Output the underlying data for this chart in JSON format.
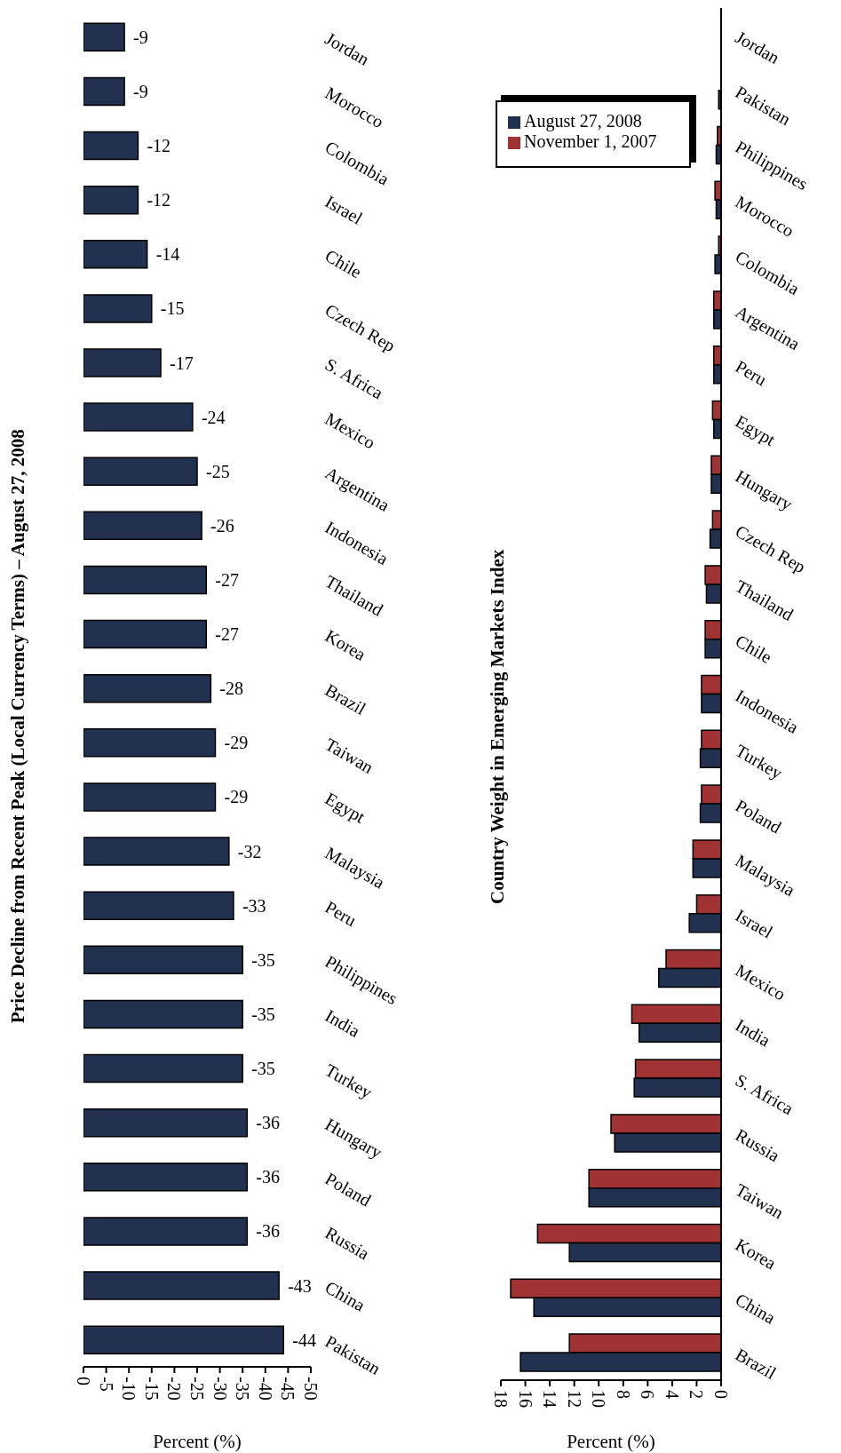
{
  "chart_data": [
    {
      "type": "bar",
      "orientation": "horizontal",
      "title": "Price Decline from Recent Peak (Local Currency Terms) – August 27, 2008",
      "xlabel": "Percent (%)",
      "categories": [
        "Jordan",
        "Morocco",
        "Colombia",
        "Israel",
        "Chile",
        "Czech Rep",
        "S. Africa",
        "Mexico",
        "Argentina",
        "Indonesia",
        "Thailand",
        "Korea",
        "Brazil",
        "Taiwan",
        "Egypt",
        "Malaysia",
        "Peru",
        "Philippines",
        "India",
        "Turkey",
        "Hungary",
        "Poland",
        "Russia",
        "China",
        "Pakistan"
      ],
      "series": [
        {
          "color": "#22314f",
          "values": [
            -9,
            -9,
            -12,
            -12,
            -14,
            -15,
            -17,
            -24,
            -25,
            -26,
            -27,
            -27,
            -28,
            -29,
            -29,
            -32,
            -33,
            -35,
            -35,
            -35,
            -36,
            -36,
            -36,
            -43,
            -44
          ]
        }
      ],
      "xlim": [
        0,
        -50
      ],
      "xticks": [
        0,
        -5,
        -10,
        -15,
        -20,
        -25,
        -30,
        -35,
        -40,
        -45,
        -50
      ],
      "data_labels": true,
      "grid": false,
      "legend": false
    },
    {
      "type": "bar",
      "orientation": "horizontal",
      "title": "Country Weight in Emerging Markets Index",
      "xlabel": "Percent (%)",
      "categories": [
        "Jordan",
        "Pakistan",
        "Philippines",
        "Morocco",
        "Colombia",
        "Argentina",
        "Peru",
        "Egypt",
        "Hungary",
        "Czech Rep",
        "Thailand",
        "Chile",
        "Indonesia",
        "Turkey",
        "Poland",
        "Malaysia",
        "Israel",
        "Mexico",
        "India",
        "S. Africa",
        "Russia",
        "Taiwan",
        "Korea",
        "China",
        "Brazil"
      ],
      "series": [
        {
          "name": "August 27, 2008",
          "color": "#22314f",
          "values": [
            null,
            0.2,
            0.4,
            0.4,
            0.5,
            0.6,
            0.6,
            0.6,
            0.8,
            0.9,
            1.2,
            1.3,
            1.6,
            1.7,
            1.7,
            2.3,
            2.6,
            5.1,
            6.7,
            7.1,
            8.7,
            10.8,
            12.4,
            15.3,
            16.4
          ]
        },
        {
          "name": "November 1, 2007",
          "color": "#a03234",
          "values": [
            null,
            null,
            0.3,
            0.5,
            0.2,
            0.6,
            0.6,
            0.7,
            0.8,
            0.7,
            1.3,
            1.3,
            1.6,
            1.6,
            1.6,
            2.3,
            2.0,
            4.5,
            7.3,
            7.0,
            9.0,
            10.8,
            15.0,
            17.2,
            12.4
          ]
        }
      ],
      "xlim": [
        18,
        0
      ],
      "xticks": [
        18,
        16,
        14,
        12,
        10,
        8,
        6,
        4,
        2,
        0
      ],
      "grid": false,
      "legend": "top left"
    }
  ]
}
